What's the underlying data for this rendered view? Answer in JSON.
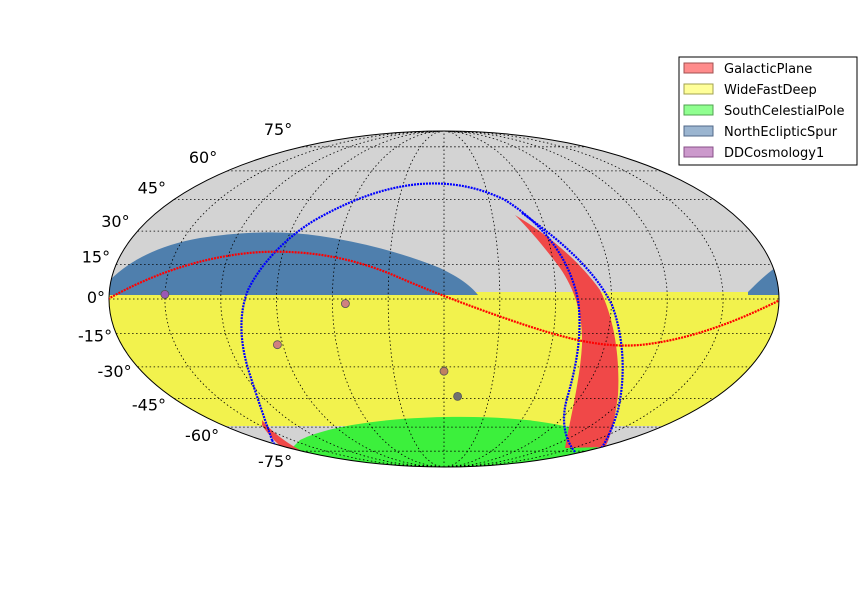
{
  "map": {
    "projection": "mollweide",
    "background_color": "#d3d3d3",
    "grid": true,
    "latitude_labels": [
      "75°",
      "60°",
      "45°",
      "30°",
      "15°",
      "0°",
      "-15°",
      "-30°",
      "-45°",
      "-60°",
      "-75°"
    ],
    "legend": {
      "placement": "top-right",
      "items": [
        {
          "label": "GalacticPlane",
          "color": "#ff8c8c",
          "edge": "#a05050"
        },
        {
          "label": "WideFastDeep",
          "color": "#ffff99",
          "edge": "#a0a050"
        },
        {
          "label": "SouthCelestialPole",
          "color": "#90ff90",
          "edge": "#50a050"
        },
        {
          "label": "NorthEclipticSpur",
          "color": "#9bb5d0",
          "edge": "#506888"
        },
        {
          "label": "DDCosmology1",
          "color": "#cc99cc",
          "edge": "#885088"
        }
      ]
    },
    "regions": {
      "wide_fast_deep": {
        "color": "#f2f24d",
        "dec_min": -62,
        "dec_max": 0
      },
      "south_celestial_pole": {
        "color": "#3cf03c",
        "dec_min": -90,
        "dec_max": -62
      },
      "north_ecliptic_spur": {
        "color": "#4f7fad",
        "dec_min": 0,
        "dec_max": 29
      },
      "galactic_plane": {
        "color": "#f04848"
      }
    },
    "curves": {
      "ecliptic": {
        "color": "#ff0000"
      },
      "galactic_plane_boundary": {
        "color": "#0000ff"
      }
    },
    "dd_fields": [
      {
        "ra_deg": 150,
        "dec_deg": 2,
        "color": "#9b59b6"
      },
      {
        "ra_deg": 53,
        "dec_deg": -2,
        "color": "#d08080"
      },
      {
        "ra_deg": 93,
        "dec_deg": -20,
        "color": "#d08080"
      },
      {
        "ra_deg": 0,
        "dec_deg": -32,
        "color": "#c08060"
      },
      {
        "ra_deg": -9,
        "dec_deg": -44,
        "color": "#707070"
      }
    ]
  }
}
